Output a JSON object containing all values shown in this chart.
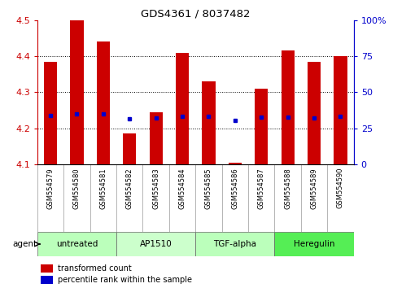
{
  "title": "GDS4361 / 8037482",
  "samples": [
    "GSM554579",
    "GSM554580",
    "GSM554581",
    "GSM554582",
    "GSM554583",
    "GSM554584",
    "GSM554585",
    "GSM554586",
    "GSM554587",
    "GSM554588",
    "GSM554589",
    "GSM554590"
  ],
  "bar_values": [
    4.385,
    4.5,
    4.44,
    4.185,
    4.245,
    4.41,
    4.33,
    4.105,
    4.31,
    4.415,
    4.385,
    4.4
  ],
  "bar_bottom": 4.1,
  "percentile_values": [
    4.235,
    4.24,
    4.24,
    4.225,
    4.228,
    4.232,
    4.232,
    4.222,
    4.23,
    4.23,
    4.228,
    4.232
  ],
  "bar_color": "#CC0000",
  "dot_color": "#0000CC",
  "ylim": [
    4.1,
    4.5
  ],
  "y2lim": [
    0,
    100
  ],
  "y2ticks": [
    0,
    25,
    50,
    75,
    100
  ],
  "y2ticklabels": [
    "0",
    "25",
    "50",
    "75",
    "100%"
  ],
  "yticks": [
    4.1,
    4.2,
    4.3,
    4.4,
    4.5
  ],
  "left_axis_color": "#CC0000",
  "right_axis_color": "#0000CC",
  "groups": [
    {
      "label": "untreated",
      "start": 0,
      "end": 3,
      "color": "#bbffbb"
    },
    {
      "label": "AP1510",
      "start": 3,
      "end": 6,
      "color": "#ccffcc"
    },
    {
      "label": "TGF-alpha",
      "start": 6,
      "end": 9,
      "color": "#bbffbb"
    },
    {
      "label": "Heregulin",
      "start": 9,
      "end": 12,
      "color": "#55ee55"
    }
  ],
  "agent_label": "agent",
  "legend_items": [
    {
      "color": "#CC0000",
      "label": "transformed count"
    },
    {
      "color": "#0000CC",
      "label": "percentile rank within the sample"
    }
  ],
  "bar_width": 0.5,
  "grid_linestyle": "dotted",
  "tick_label_area_color": "#cccccc"
}
